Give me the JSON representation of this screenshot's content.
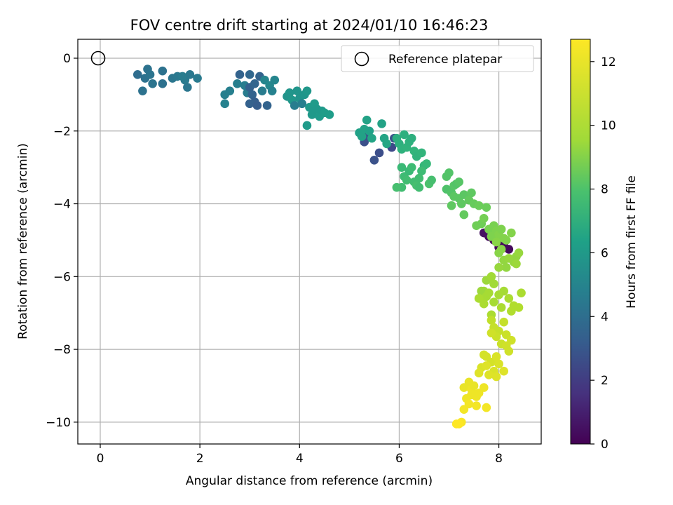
{
  "chart_data": {
    "type": "scatter",
    "title": "FOV centre drift starting at 2024/01/10 16:46:23",
    "xlabel": "Angular distance from reference (arcmin)",
    "ylabel": "Rotation from reference (arcmin)",
    "xlim": [
      -0.45,
      8.85
    ],
    "ylim": [
      -10.6,
      0.52
    ],
    "xticks": [
      0,
      2,
      4,
      6,
      8
    ],
    "xtick_labels": [
      "0",
      "2",
      "4",
      "6",
      "8"
    ],
    "yticks": [
      0,
      -2,
      -4,
      -6,
      -8,
      -10
    ],
    "ytick_labels": [
      "0",
      "−2",
      "−4",
      "−6",
      "−8",
      "−10"
    ],
    "grid": true,
    "legend": {
      "position": "top-right",
      "entries": [
        "Reference platepar"
      ]
    },
    "reference_point": {
      "x": 0,
      "y": 0,
      "label": "Reference platepar"
    },
    "colorbar": {
      "label": "Hours from first FF file",
      "colormap": "viridis",
      "range": [
        0,
        12.7
      ],
      "ticks": [
        0,
        2,
        4,
        6,
        8,
        10,
        12
      ],
      "tick_labels": [
        "0",
        "2",
        "4",
        "6",
        "8",
        "10",
        "12"
      ]
    },
    "series": [
      {
        "points_xyc": [
          [
            8.0,
            -5.2,
            0.2
          ],
          [
            7.8,
            -4.9,
            0.3
          ],
          [
            7.9,
            -5.0,
            0.2
          ],
          [
            8.2,
            -5.25,
            0.3
          ],
          [
            7.85,
            -4.75,
            0.4
          ],
          [
            8.05,
            -5.1,
            0.1
          ],
          [
            7.7,
            -4.8,
            0.6
          ],
          [
            8.1,
            -5.15,
            0.4
          ],
          [
            5.3,
            -2.3,
            3.1
          ],
          [
            5.5,
            -2.8,
            3.2
          ],
          [
            5.6,
            -2.6,
            3.0
          ],
          [
            5.85,
            -2.45,
            2.8
          ],
          [
            5.9,
            -2.2,
            3.1
          ],
          [
            5.35,
            -2.15,
            3.2
          ],
          [
            0.75,
            -0.45,
            4.5
          ],
          [
            0.9,
            -0.55,
            4.7
          ],
          [
            0.95,
            -0.3,
            4.8
          ],
          [
            1.0,
            -0.45,
            4.9
          ],
          [
            0.85,
            -0.9,
            4.8
          ],
          [
            1.05,
            -0.7,
            4.9
          ],
          [
            1.25,
            -0.35,
            4.8
          ],
          [
            1.25,
            -0.7,
            4.7
          ],
          [
            1.45,
            -0.55,
            5.0
          ],
          [
            1.55,
            -0.5,
            5.1
          ],
          [
            1.7,
            -0.6,
            5.2
          ],
          [
            1.75,
            -0.8,
            5.0
          ],
          [
            1.8,
            -0.45,
            5.1
          ],
          [
            1.95,
            -0.55,
            5.2
          ],
          [
            1.65,
            -0.5,
            5.3
          ],
          [
            2.5,
            -1.0,
            5.5
          ],
          [
            2.5,
            -1.25,
            5.6
          ],
          [
            2.6,
            -0.9,
            5.5
          ],
          [
            2.75,
            -0.7,
            5.5
          ],
          [
            2.8,
            -0.45,
            4.0
          ],
          [
            2.9,
            -0.75,
            5.4
          ],
          [
            2.95,
            -0.95,
            5.3
          ],
          [
            3.0,
            -0.45,
            4.2
          ],
          [
            3.0,
            -0.8,
            3.9
          ],
          [
            3.05,
            -1.0,
            4.0
          ],
          [
            3.1,
            -1.2,
            3.8
          ],
          [
            3.0,
            -1.25,
            3.9
          ],
          [
            3.1,
            -0.7,
            4.1
          ],
          [
            3.15,
            -1.3,
            3.7
          ],
          [
            3.2,
            -0.5,
            4.0
          ],
          [
            3.25,
            -0.9,
            5.3
          ],
          [
            3.3,
            -0.6,
            5.8
          ],
          [
            3.35,
            -1.3,
            4.0
          ],
          [
            3.4,
            -0.75,
            5.9
          ],
          [
            3.5,
            -0.6,
            5.8
          ],
          [
            3.45,
            -0.9,
            5.6
          ],
          [
            3.75,
            -1.05,
            6.5
          ],
          [
            3.8,
            -0.95,
            6.6
          ],
          [
            3.85,
            -1.15,
            6.7
          ],
          [
            3.9,
            -1.3,
            5.4
          ],
          [
            3.95,
            -0.9,
            6.6
          ],
          [
            4.0,
            -1.1,
            6.5
          ],
          [
            4.05,
            -1.25,
            5.5
          ],
          [
            4.1,
            -1.0,
            6.6
          ],
          [
            4.15,
            -0.9,
            6.7
          ],
          [
            4.2,
            -1.35,
            6.8
          ],
          [
            4.25,
            -1.55,
            6.8
          ],
          [
            4.3,
            -1.25,
            6.9
          ],
          [
            4.35,
            -1.4,
            6.8
          ],
          [
            4.4,
            -1.6,
            6.9
          ],
          [
            4.45,
            -1.45,
            6.8
          ],
          [
            4.5,
            -1.5,
            7.0
          ],
          [
            4.6,
            -1.55,
            7.0
          ],
          [
            4.15,
            -1.85,
            6.9
          ],
          [
            5.2,
            -2.05,
            7.2
          ],
          [
            5.25,
            -2.15,
            7.3
          ],
          [
            5.3,
            -1.95,
            7.3
          ],
          [
            5.35,
            -1.7,
            7.3
          ],
          [
            5.4,
            -2.0,
            7.2
          ],
          [
            5.45,
            -2.2,
            7.4
          ],
          [
            5.65,
            -1.8,
            7.3
          ],
          [
            5.7,
            -2.2,
            7.4
          ],
          [
            5.75,
            -2.35,
            7.5
          ],
          [
            5.95,
            -2.2,
            7.9
          ],
          [
            6.0,
            -2.35,
            8.0
          ],
          [
            6.05,
            -2.5,
            8.1
          ],
          [
            6.1,
            -2.1,
            8.0
          ],
          [
            6.15,
            -2.45,
            8.2
          ],
          [
            6.2,
            -2.3,
            8.1
          ],
          [
            6.25,
            -2.2,
            8.0
          ],
          [
            6.3,
            -2.55,
            8.3
          ],
          [
            6.35,
            -2.7,
            8.2
          ],
          [
            6.45,
            -2.6,
            8.3
          ],
          [
            6.5,
            -2.95,
            8.4
          ],
          [
            6.55,
            -2.9,
            8.5
          ],
          [
            6.05,
            -3.0,
            8.6
          ],
          [
            6.1,
            -3.25,
            8.7
          ],
          [
            6.15,
            -3.35,
            8.8
          ],
          [
            6.2,
            -3.1,
            8.6
          ],
          [
            6.25,
            -3.0,
            8.7
          ],
          [
            6.3,
            -3.4,
            8.8
          ],
          [
            6.05,
            -3.55,
            8.8
          ],
          [
            5.95,
            -3.55,
            8.9
          ],
          [
            6.35,
            -3.5,
            8.9
          ],
          [
            6.4,
            -3.55,
            8.8
          ],
          [
            6.6,
            -3.45,
            9.0
          ],
          [
            6.65,
            -3.35,
            8.9
          ],
          [
            6.4,
            -3.3,
            8.8
          ],
          [
            6.45,
            -3.1,
            8.7
          ],
          [
            6.95,
            -3.25,
            9.2
          ],
          [
            7.0,
            -3.15,
            9.2
          ],
          [
            6.95,
            -3.6,
            9.1
          ],
          [
            7.05,
            -3.7,
            9.2
          ],
          [
            7.1,
            -3.5,
            9.3
          ],
          [
            7.15,
            -3.45,
            9.2
          ],
          [
            7.2,
            -3.4,
            9.3
          ],
          [
            7.1,
            -3.8,
            9.4
          ],
          [
            7.2,
            -3.85,
            9.4
          ],
          [
            7.25,
            -4.0,
            9.5
          ],
          [
            7.05,
            -4.05,
            9.5
          ],
          [
            7.3,
            -3.75,
            9.4
          ],
          [
            7.4,
            -3.9,
            9.6
          ],
          [
            7.45,
            -3.7,
            9.5
          ],
          [
            7.5,
            -4.0,
            9.7
          ],
          [
            7.6,
            -4.05,
            9.8
          ],
          [
            7.75,
            -4.1,
            9.8
          ],
          [
            7.3,
            -4.3,
            9.6
          ],
          [
            7.55,
            -4.6,
            9.9
          ],
          [
            7.65,
            -4.55,
            9.9
          ],
          [
            7.7,
            -4.4,
            10.0
          ],
          [
            7.8,
            -4.7,
            10.1
          ],
          [
            7.85,
            -4.9,
            10.2
          ],
          [
            7.9,
            -4.6,
            10.1
          ],
          [
            7.95,
            -4.75,
            10.2
          ],
          [
            8.0,
            -4.85,
            10.3
          ],
          [
            8.05,
            -4.7,
            10.2
          ],
          [
            8.1,
            -4.95,
            10.3
          ],
          [
            7.95,
            -5.05,
            10.4
          ],
          [
            8.15,
            -5.0,
            10.3
          ],
          [
            8.0,
            -5.35,
            10.4
          ],
          [
            8.25,
            -4.8,
            10.3
          ],
          [
            8.05,
            -5.25,
            10.4
          ],
          [
            8.1,
            -5.55,
            10.6
          ],
          [
            8.15,
            -5.75,
            10.6
          ],
          [
            8.3,
            -5.6,
            10.7
          ],
          [
            8.35,
            -5.45,
            10.6
          ],
          [
            8.4,
            -5.35,
            10.7
          ],
          [
            8.2,
            -5.5,
            10.7
          ],
          [
            8.35,
            -5.65,
            10.8
          ],
          [
            8.0,
            -5.75,
            10.7
          ],
          [
            7.75,
            -6.1,
            10.8
          ],
          [
            7.85,
            -6.0,
            10.9
          ],
          [
            7.9,
            -6.2,
            10.9
          ],
          [
            7.7,
            -6.4,
            10.9
          ],
          [
            7.65,
            -6.4,
            10.8
          ],
          [
            7.75,
            -6.55,
            11.0
          ],
          [
            7.8,
            -6.45,
            11.0
          ],
          [
            7.9,
            -6.7,
            11.0
          ],
          [
            8.0,
            -6.5,
            11.0
          ],
          [
            8.05,
            -6.85,
            11.1
          ],
          [
            8.1,
            -6.4,
            11.0
          ],
          [
            7.6,
            -6.6,
            11.1
          ],
          [
            7.7,
            -6.75,
            11.1
          ],
          [
            7.85,
            -7.05,
            11.1
          ],
          [
            8.25,
            -6.95,
            11.2
          ],
          [
            8.3,
            -6.8,
            11.2
          ],
          [
            8.4,
            -6.85,
            11.2
          ],
          [
            8.45,
            -6.45,
            11.1
          ],
          [
            8.2,
            -6.6,
            11.1
          ],
          [
            7.85,
            -7.2,
            11.5
          ],
          [
            7.9,
            -7.4,
            11.6
          ],
          [
            8.0,
            -7.5,
            11.6
          ],
          [
            8.1,
            -7.25,
            11.6
          ],
          [
            8.15,
            -7.6,
            11.7
          ],
          [
            7.95,
            -7.65,
            11.7
          ],
          [
            8.05,
            -7.85,
            11.7
          ],
          [
            8.15,
            -7.9,
            11.8
          ],
          [
            8.25,
            -7.75,
            11.8
          ],
          [
            8.2,
            -8.05,
            11.8
          ],
          [
            7.85,
            -7.55,
            11.8
          ],
          [
            7.7,
            -8.15,
            11.9
          ],
          [
            7.75,
            -8.2,
            11.9
          ],
          [
            7.85,
            -8.35,
            11.9
          ],
          [
            7.95,
            -8.2,
            12.0
          ],
          [
            7.9,
            -8.6,
            12.0
          ],
          [
            8.0,
            -8.4,
            12.0
          ],
          [
            7.65,
            -8.5,
            12.0
          ],
          [
            7.8,
            -8.7,
            12.1
          ],
          [
            7.95,
            -8.75,
            12.1
          ],
          [
            8.1,
            -8.6,
            12.1
          ],
          [
            7.75,
            -8.45,
            12.1
          ],
          [
            7.6,
            -8.65,
            12.1
          ],
          [
            7.3,
            -9.05,
            12.3
          ],
          [
            7.4,
            -8.9,
            12.3
          ],
          [
            7.45,
            -9.1,
            12.4
          ],
          [
            7.5,
            -9.0,
            12.3
          ],
          [
            7.55,
            -9.3,
            12.4
          ],
          [
            7.35,
            -9.35,
            12.4
          ],
          [
            7.6,
            -9.2,
            12.4
          ],
          [
            7.4,
            -9.5,
            12.5
          ],
          [
            7.55,
            -9.55,
            12.5
          ],
          [
            7.3,
            -9.65,
            12.5
          ],
          [
            7.7,
            -9.05,
            12.4
          ],
          [
            7.45,
            -9.25,
            12.4
          ],
          [
            7.75,
            -9.6,
            12.5
          ],
          [
            7.25,
            -10.0,
            12.6
          ],
          [
            7.15,
            -10.05,
            12.7
          ],
          [
            7.2,
            -10.05,
            12.7
          ]
        ]
      }
    ]
  }
}
